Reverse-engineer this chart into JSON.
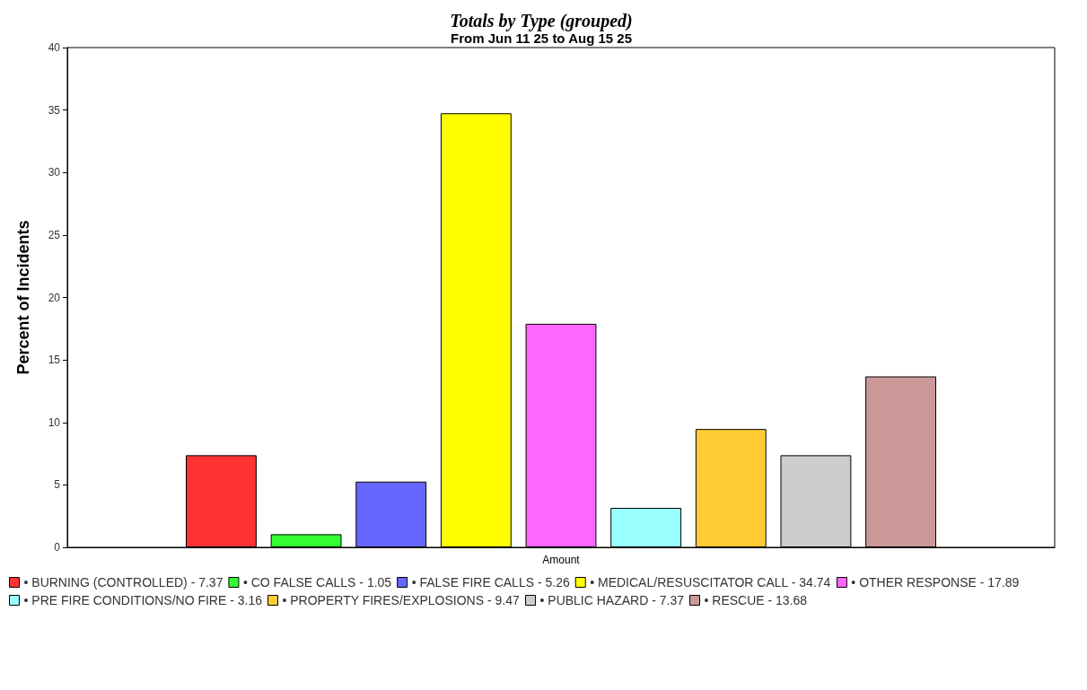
{
  "chart_data": {
    "type": "bar",
    "title": "Totals by Type (grouped)",
    "subtitle": "From Jun 11 25 to Aug 15 25",
    "ylabel": "Percent of Incidents",
    "categories": [
      "Amount"
    ],
    "series": [
      {
        "name": "• BURNING (CONTROLLED) - 7.37",
        "color": "#ff3333",
        "values": [
          7.37
        ]
      },
      {
        "name": "• CO FALSE CALLS - 1.05",
        "color": "#33ff33",
        "values": [
          1.05
        ]
      },
      {
        "name": "• FALSE FIRE CALLS - 5.26",
        "color": "#6666ff",
        "values": [
          5.26
        ]
      },
      {
        "name": "• MEDICAL/RESUSCITATOR CALL - 34.74",
        "color": "#ffff00",
        "values": [
          34.74
        ]
      },
      {
        "name": "• OTHER RESPONSE - 17.89",
        "color": "#ff66ff",
        "values": [
          17.89
        ]
      },
      {
        "name": "• PRE FIRE CONDITIONS/NO FIRE - 3.16",
        "color": "#99ffff",
        "values": [
          3.16
        ]
      },
      {
        "name": "• PROPERTY FIRES/EXPLOSIONS - 9.47",
        "color": "#ffcc33",
        "values": [
          9.47
        ]
      },
      {
        "name": "• PUBLIC HAZARD - 7.37",
        "color": "#cccccc",
        "values": [
          7.37
        ]
      },
      {
        "name": "• RESCUE - 13.68",
        "color": "#cc9999",
        "values": [
          13.68
        ]
      }
    ],
    "ylim": [
      0,
      40
    ],
    "yticks": [
      0,
      5,
      10,
      15,
      20,
      25,
      30,
      35,
      40
    ],
    "grid": false,
    "legend": "bottom"
  }
}
